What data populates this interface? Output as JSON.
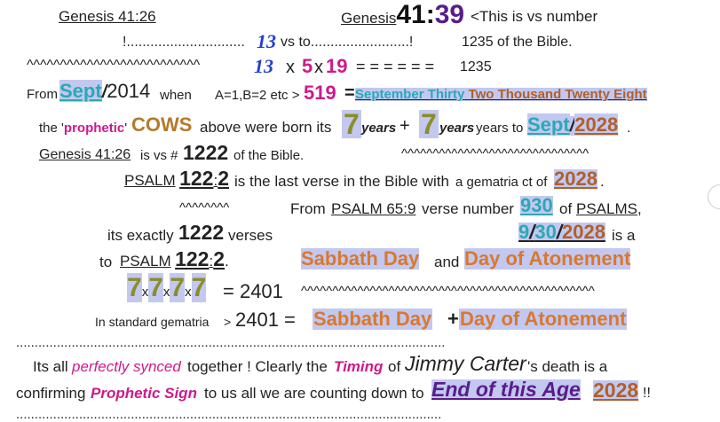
{
  "line1": {
    "ref_left": "Genesis 41:26",
    "ref_right_book": "Genesis",
    "ref_right_ch": "41",
    "ref_right_colon": ":",
    "ref_right_vs": "39",
    "note": "<This is vs number"
  },
  "line2": {
    "lead": "!..............................",
    "num": "13",
    "mid": "vs to.........................!",
    "total": "1235 of the Bible."
  },
  "line3": {
    "tildes": "^^^^^^^^^^^^^^^^^^^^^^^^^^",
    "a": "13",
    "x1": "x",
    "b": "5",
    "x2": "x",
    "c": "19",
    "eq": "= = = = = =",
    "res": "1235"
  },
  "line4": {
    "from": "From",
    "sept": "Sept",
    "slash": "/",
    "year": "2014",
    "when": "when",
    "cipher": "A=1,B=2 etc >",
    "val": "519",
    "eq": "=",
    "p1": "September Thirty",
    "p2": "Two Thousand Twenty Eight"
  },
  "line5": {
    "the": "the",
    "q1": "'",
    "prophetic": "prophetic",
    "q2": "'",
    "cows": "COWS",
    "born": "above were born its",
    "seven1": "7",
    "years1": "years",
    "plus": "+",
    "seven2": "7",
    "years2": "years",
    "to": "years to",
    "sept": "Sept",
    "slash": "/",
    "year": "2028",
    "dot": "."
  },
  "line6": {
    "ref": "Genesis 41:26",
    "is": "is vs #",
    "num": "1222",
    "rest": "of the Bible.",
    "tildes": "^^^^^^^^^^^^^^^^^^^^^^^^^^^^^^"
  },
  "line7": {
    "psalm": "PSALM",
    "ch": "122",
    "colon": ":",
    "vs": "2",
    "rest1": "is the last verse in the Bible with",
    "rest2": "a gematria ct of",
    "year": "2028",
    "dot": "."
  },
  "line8": {
    "tildes": "^^^^^^^^",
    "from": "From",
    "ref": "PSALM 65:9",
    "mid": "verse number",
    "num": "930",
    "of": "of",
    "psalms": "PSALMS",
    "comma": ","
  },
  "line9": {
    "text": "its exactly",
    "num": "1222",
    "verses": "verses",
    "m": "9",
    "s1": "/",
    "d": "30",
    "s2": "/",
    "y": "2028",
    "isa": "is a"
  },
  "line10": {
    "to": "to",
    "psalm": "PSALM",
    "ch": "122",
    "colon": ":",
    "vs": "2",
    "dot": ".",
    "sabbath": "Sabbath Day",
    "and": "and",
    "atonement": "Day of Atonement"
  },
  "line11": {
    "s1": "7",
    "x1": "x",
    "s2": "7",
    "x2": "x",
    "s3": "7",
    "x3": "x",
    "s4": "7",
    "res": "= 2401",
    "tildes": "^^^^^^^^^^^^^^^^^^^^^^^^^^^^^^^^^^^^^^^^^^^^^^^"
  },
  "line12": {
    "text": "In standard gematria",
    "gt": ">",
    "res": "2401 =",
    "sabbath": "Sabbath Day",
    "plus": "+",
    "atonement": "Day of Atonement"
  },
  "dots1": "....................................................................................................................",
  "line13": {
    "a": "Its all",
    "synced": "perfectly synced",
    "b": "together ! Clearly the",
    "timing": "Timing",
    "of": "of",
    "carter": "Jimmy Carter",
    "c": "'s death is a"
  },
  "line14": {
    "a": "confirming",
    "sign": "Prophetic Sign",
    "b": "to us all we are counting down to",
    "age": "End of this Age",
    "year": "2028",
    "bang": "!!"
  },
  "dots2": "...................................................................................................................",
  "colors": {
    "teal": "#2aa9b4",
    "brown": "#b0602a",
    "orange": "#d9782e",
    "olive": "#8a8e28",
    "magenta": "#cc1a8c",
    "blue": "#1f3fd6",
    "purple": "#5a1c8a",
    "highlight": "#c2c8f0"
  }
}
